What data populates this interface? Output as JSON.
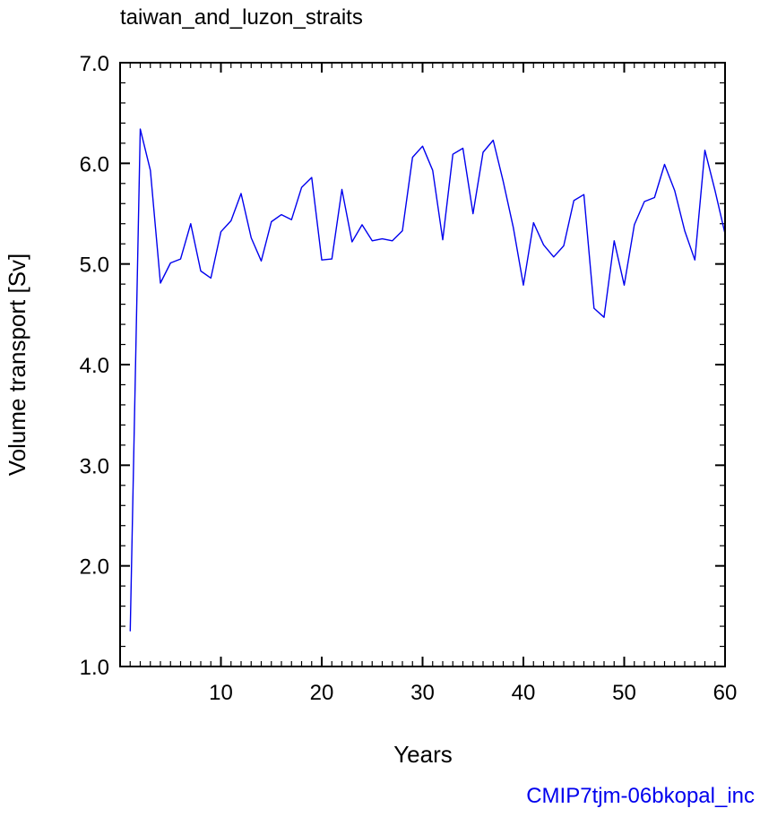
{
  "chart_data": {
    "type": "line",
    "title": "taiwan_and_luzon_straits",
    "xlabel": "Years",
    "ylabel": "Volume transport [Sv]",
    "xlim": [
      0,
      60
    ],
    "ylim": [
      1.0,
      7.0
    ],
    "x_ticks": [
      10,
      20,
      30,
      40,
      50,
      60
    ],
    "x_tick_labels": [
      "10",
      "20",
      "30",
      "40",
      "50",
      "60"
    ],
    "x_minor_step": 1,
    "y_ticks": [
      1.0,
      2.0,
      3.0,
      4.0,
      5.0,
      6.0,
      7.0
    ],
    "y_tick_labels": [
      "1.0",
      "2.0",
      "3.0",
      "4.0",
      "5.0",
      "6.0",
      "7.0"
    ],
    "y_minor_step": 0.2,
    "grid": false,
    "series": [
      {
        "color": "#0000ee",
        "x": [
          1,
          2,
          3,
          4,
          5,
          6,
          7,
          8,
          9,
          10,
          11,
          12,
          13,
          14,
          15,
          16,
          17,
          18,
          19,
          20,
          21,
          22,
          23,
          24,
          25,
          26,
          27,
          28,
          29,
          30,
          31,
          32,
          33,
          34,
          35,
          36,
          37,
          38,
          39,
          40,
          41,
          42,
          43,
          44,
          45,
          46,
          47,
          48,
          49,
          50,
          51,
          52,
          53,
          54,
          55,
          56,
          57,
          58,
          59,
          60
        ],
        "y": [
          1.35,
          6.34,
          5.93,
          4.81,
          5.01,
          5.05,
          5.4,
          4.93,
          4.86,
          5.32,
          5.43,
          5.7,
          5.26,
          5.03,
          5.42,
          5.49,
          5.44,
          5.76,
          5.86,
          5.04,
          5.05,
          5.74,
          5.22,
          5.39,
          5.23,
          5.25,
          5.23,
          5.33,
          6.06,
          6.17,
          5.93,
          5.24,
          6.09,
          6.15,
          5.5,
          6.11,
          6.23,
          5.82,
          5.36,
          4.79,
          5.41,
          5.19,
          5.07,
          5.18,
          5.63,
          5.69,
          4.56,
          4.47,
          5.23,
          4.79,
          5.39,
          5.62,
          5.66,
          5.99,
          5.73,
          5.33,
          5.04,
          6.13,
          5.73,
          5.3
        ]
      }
    ]
  },
  "footer": {
    "text": "CMIP7tjm-06bkopal_inc",
    "color": "#0000ee"
  }
}
